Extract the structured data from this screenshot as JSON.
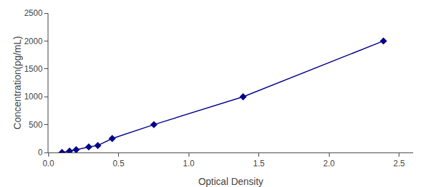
{
  "chart_data": {
    "type": "line",
    "xlabel": "Optical Density",
    "ylabel": "Concentration(pg/mL)",
    "x": [
      0.097,
      0.151,
      0.198,
      0.288,
      0.352,
      0.455,
      0.752,
      1.388,
      2.388
    ],
    "values": [
      0,
      25,
      50,
      100,
      125,
      250,
      500,
      1000,
      2000
    ],
    "color": "#00008B",
    "marker": "diamond",
    "line_style": "solid",
    "xlim": [
      0.0,
      2.6
    ],
    "ylim": [
      0,
      2500
    ],
    "xticks": [
      {
        "value": 0,
        "label": "0.0"
      },
      0.5,
      {
        "value": 1,
        "label": "1.0"
      },
      1.5,
      {
        "value": 2,
        "label": "2.0"
      },
      2.5
    ],
    "yticks": [
      0,
      500,
      1000,
      1500,
      2000,
      2500
    ],
    "grid": false
  }
}
